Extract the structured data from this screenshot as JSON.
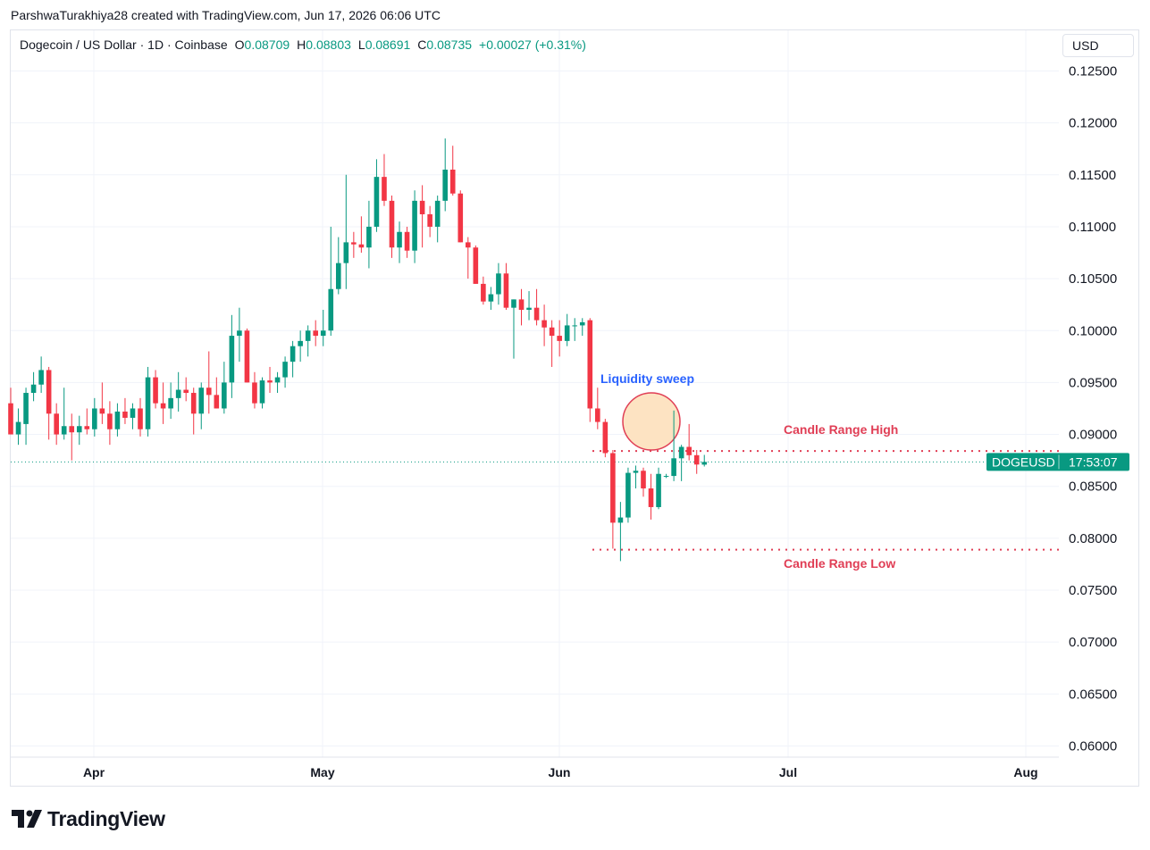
{
  "caption": "ParshwaTurakhiya28 created with TradingView.com, Jun 17, 2026 06:06 UTC",
  "legend": {
    "symbol": "Dogecoin / US Dollar · 1D · Coinbase",
    "open_label": "O",
    "open": "0.08709",
    "high_label": "H",
    "high": "0.08803",
    "low_label": "L",
    "low": "0.08691",
    "close_label": "C",
    "close": "0.08735",
    "change": "+0.00027 (+0.31%)"
  },
  "currency": "USD",
  "price_tag": {
    "ticker": "DOGEUSD",
    "countdown": "17:53:07",
    "price": 0.08735
  },
  "annotations": {
    "liquidity_sweep": "Liquidity sweep",
    "candle_range_high": "Candle Range High",
    "candle_range_low": "Candle Range Low"
  },
  "brand": "TradingView",
  "colors": {
    "up": "#089981",
    "down": "#f23645",
    "annotation_red": "#e03e55",
    "annotation_blue": "#2962ff",
    "circle_fill": "#fde3c2",
    "circle_stroke": "#e03e55",
    "grid": "#f0f3fa",
    "text": "#131722"
  },
  "chart_data": {
    "type": "candlestick",
    "interval": "1D",
    "y_ticks": [
      "0.12500",
      "0.12000",
      "0.11500",
      "0.11000",
      "0.10500",
      "0.10000",
      "0.09500",
      "0.09000",
      "0.08500",
      "0.08000",
      "0.07500",
      "0.07000",
      "0.06500",
      "0.06000"
    ],
    "ylim": [
      0.058,
      0.127
    ],
    "x_ticks": [
      "Apr",
      "May",
      "Jun",
      "Jul",
      "Aug"
    ],
    "candle_range_high": 0.0884,
    "candle_range_low": 0.0789,
    "candles": [
      {
        "o": 0.093,
        "h": 0.0945,
        "l": 0.0905,
        "c": 0.09
      },
      {
        "o": 0.09,
        "h": 0.0925,
        "l": 0.089,
        "c": 0.0912
      },
      {
        "o": 0.091,
        "h": 0.0945,
        "l": 0.089,
        "c": 0.094
      },
      {
        "o": 0.094,
        "h": 0.096,
        "l": 0.0932,
        "c": 0.0948
      },
      {
        "o": 0.0948,
        "h": 0.0975,
        "l": 0.094,
        "c": 0.0962
      },
      {
        "o": 0.0962,
        "h": 0.0965,
        "l": 0.0895,
        "c": 0.092
      },
      {
        "o": 0.092,
        "h": 0.093,
        "l": 0.089,
        "c": 0.09
      },
      {
        "o": 0.09,
        "h": 0.0945,
        "l": 0.0895,
        "c": 0.0908
      },
      {
        "o": 0.0908,
        "h": 0.092,
        "l": 0.0875,
        "c": 0.0902
      },
      {
        "o": 0.0902,
        "h": 0.0918,
        "l": 0.089,
        "c": 0.0908
      },
      {
        "o": 0.0908,
        "h": 0.0925,
        "l": 0.09,
        "c": 0.0905
      },
      {
        "o": 0.0905,
        "h": 0.0935,
        "l": 0.0898,
        "c": 0.0925
      },
      {
        "o": 0.0925,
        "h": 0.095,
        "l": 0.091,
        "c": 0.092
      },
      {
        "o": 0.092,
        "h": 0.0932,
        "l": 0.089,
        "c": 0.0905
      },
      {
        "o": 0.0905,
        "h": 0.093,
        "l": 0.0898,
        "c": 0.0922
      },
      {
        "o": 0.0922,
        "h": 0.0935,
        "l": 0.091,
        "c": 0.0916
      },
      {
        "o": 0.0916,
        "h": 0.093,
        "l": 0.0905,
        "c": 0.0925
      },
      {
        "o": 0.0925,
        "h": 0.0935,
        "l": 0.0898,
        "c": 0.0905
      },
      {
        "o": 0.0905,
        "h": 0.0965,
        "l": 0.0898,
        "c": 0.0955
      },
      {
        "o": 0.0955,
        "h": 0.0962,
        "l": 0.0925,
        "c": 0.093
      },
      {
        "o": 0.093,
        "h": 0.095,
        "l": 0.091,
        "c": 0.0925
      },
      {
        "o": 0.0925,
        "h": 0.095,
        "l": 0.0915,
        "c": 0.0935
      },
      {
        "o": 0.0935,
        "h": 0.096,
        "l": 0.0922,
        "c": 0.0943
      },
      {
        "o": 0.0943,
        "h": 0.0955,
        "l": 0.0932,
        "c": 0.094
      },
      {
        "o": 0.094,
        "h": 0.0945,
        "l": 0.09,
        "c": 0.092
      },
      {
        "o": 0.092,
        "h": 0.095,
        "l": 0.0905,
        "c": 0.0945
      },
      {
        "o": 0.0945,
        "h": 0.098,
        "l": 0.092,
        "c": 0.0938
      },
      {
        "o": 0.0938,
        "h": 0.0955,
        "l": 0.0925,
        "c": 0.0925
      },
      {
        "o": 0.0925,
        "h": 0.097,
        "l": 0.092,
        "c": 0.095
      },
      {
        "o": 0.095,
        "h": 0.1015,
        "l": 0.0935,
        "c": 0.0995
      },
      {
        "o": 0.0995,
        "h": 0.1022,
        "l": 0.097,
        "c": 0.1
      },
      {
        "o": 0.1,
        "h": 0.1002,
        "l": 0.095,
        "c": 0.095
      },
      {
        "o": 0.095,
        "h": 0.096,
        "l": 0.0925,
        "c": 0.093
      },
      {
        "o": 0.093,
        "h": 0.0955,
        "l": 0.0925,
        "c": 0.0952
      },
      {
        "o": 0.0952,
        "h": 0.0965,
        "l": 0.094,
        "c": 0.095
      },
      {
        "o": 0.095,
        "h": 0.096,
        "l": 0.094,
        "c": 0.0955
      },
      {
        "o": 0.0955,
        "h": 0.0975,
        "l": 0.0945,
        "c": 0.097
      },
      {
        "o": 0.097,
        "h": 0.099,
        "l": 0.0955,
        "c": 0.0985
      },
      {
        "o": 0.0985,
        "h": 0.1,
        "l": 0.097,
        "c": 0.099
      },
      {
        "o": 0.099,
        "h": 0.1005,
        "l": 0.0975,
        "c": 0.1
      },
      {
        "o": 0.1,
        "h": 0.101,
        "l": 0.0985,
        "c": 0.0995
      },
      {
        "o": 0.0995,
        "h": 0.102,
        "l": 0.0985,
        "c": 0.1
      },
      {
        "o": 0.1,
        "h": 0.11,
        "l": 0.0995,
        "c": 0.104
      },
      {
        "o": 0.104,
        "h": 0.109,
        "l": 0.1035,
        "c": 0.1065
      },
      {
        "o": 0.1065,
        "h": 0.115,
        "l": 0.104,
        "c": 0.1085
      },
      {
        "o": 0.1085,
        "h": 0.1095,
        "l": 0.107,
        "c": 0.1083
      },
      {
        "o": 0.1083,
        "h": 0.111,
        "l": 0.1075,
        "c": 0.108
      },
      {
        "o": 0.108,
        "h": 0.1125,
        "l": 0.106,
        "c": 0.11
      },
      {
        "o": 0.11,
        "h": 0.1165,
        "l": 0.1095,
        "c": 0.1148
      },
      {
        "o": 0.1148,
        "h": 0.117,
        "l": 0.112,
        "c": 0.1125
      },
      {
        "o": 0.1125,
        "h": 0.113,
        "l": 0.107,
        "c": 0.108
      },
      {
        "o": 0.108,
        "h": 0.1105,
        "l": 0.1065,
        "c": 0.1095
      },
      {
        "o": 0.1095,
        "h": 0.11,
        "l": 0.107,
        "c": 0.1077
      },
      {
        "o": 0.1077,
        "h": 0.1135,
        "l": 0.1065,
        "c": 0.1125
      },
      {
        "o": 0.1125,
        "h": 0.114,
        "l": 0.108,
        "c": 0.1112
      },
      {
        "o": 0.1112,
        "h": 0.112,
        "l": 0.109,
        "c": 0.11
      },
      {
        "o": 0.11,
        "h": 0.113,
        "l": 0.1085,
        "c": 0.1125
      },
      {
        "o": 0.1125,
        "h": 0.1185,
        "l": 0.1115,
        "c": 0.1155
      },
      {
        "o": 0.1155,
        "h": 0.1178,
        "l": 0.113,
        "c": 0.1132
      },
      {
        "o": 0.1132,
        "h": 0.1135,
        "l": 0.1085,
        "c": 0.1085
      },
      {
        "o": 0.1085,
        "h": 0.109,
        "l": 0.105,
        "c": 0.108
      },
      {
        "o": 0.108,
        "h": 0.1082,
        "l": 0.1045,
        "c": 0.1045
      },
      {
        "o": 0.1045,
        "h": 0.1052,
        "l": 0.1025,
        "c": 0.1028
      },
      {
        "o": 0.1028,
        "h": 0.1042,
        "l": 0.102,
        "c": 0.1035
      },
      {
        "o": 0.1035,
        "h": 0.1065,
        "l": 0.1025,
        "c": 0.1055
      },
      {
        "o": 0.1055,
        "h": 0.1065,
        "l": 0.102,
        "c": 0.1022
      },
      {
        "o": 0.1022,
        "h": 0.103,
        "l": 0.0973,
        "c": 0.103
      },
      {
        "o": 0.103,
        "h": 0.104,
        "l": 0.1005,
        "c": 0.102
      },
      {
        "o": 0.102,
        "h": 0.1038,
        "l": 0.101,
        "c": 0.1022
      },
      {
        "o": 0.1022,
        "h": 0.104,
        "l": 0.1005,
        "c": 0.101
      },
      {
        "o": 0.101,
        "h": 0.1025,
        "l": 0.0985,
        "c": 0.1003
      },
      {
        "o": 0.1003,
        "h": 0.101,
        "l": 0.0965,
        "c": 0.0995
      },
      {
        "o": 0.0995,
        "h": 0.101,
        "l": 0.0975,
        "c": 0.099
      },
      {
        "o": 0.099,
        "h": 0.1016,
        "l": 0.0985,
        "c": 0.1005
      },
      {
        "o": 0.1005,
        "h": 0.1012,
        "l": 0.099,
        "c": 0.1005
      },
      {
        "o": 0.1005,
        "h": 0.1012,
        "l": 0.0995,
        "c": 0.1008
      },
      {
        "o": 0.101,
        "h": 0.1012,
        "l": 0.0912,
        "c": 0.0925
      },
      {
        "o": 0.0925,
        "h": 0.0945,
        "l": 0.0905,
        "c": 0.0912
      },
      {
        "o": 0.0912,
        "h": 0.0915,
        "l": 0.0878,
        "c": 0.0882
      },
      {
        "o": 0.0882,
        "h": 0.0885,
        "l": 0.079,
        "c": 0.0815
      },
      {
        "o": 0.0815,
        "h": 0.0835,
        "l": 0.0778,
        "c": 0.082
      },
      {
        "o": 0.082,
        "h": 0.0868,
        "l": 0.0815,
        "c": 0.0863
      },
      {
        "o": 0.0863,
        "h": 0.087,
        "l": 0.0848,
        "c": 0.0865
      },
      {
        "o": 0.0865,
        "h": 0.0868,
        "l": 0.084,
        "c": 0.0848
      },
      {
        "o": 0.0848,
        "h": 0.0862,
        "l": 0.0818,
        "c": 0.083
      },
      {
        "o": 0.083,
        "h": 0.0868,
        "l": 0.0828,
        "c": 0.0862
      },
      {
        "o": 0.086,
        "h": 0.0862,
        "l": 0.0858,
        "c": 0.086
      },
      {
        "o": 0.086,
        "h": 0.0923,
        "l": 0.0855,
        "c": 0.0877
      },
      {
        "o": 0.0877,
        "h": 0.089,
        "l": 0.0855,
        "c": 0.0888
      },
      {
        "o": 0.0888,
        "h": 0.091,
        "l": 0.0875,
        "c": 0.088
      },
      {
        "o": 0.088,
        "h": 0.0885,
        "l": 0.0862,
        "c": 0.0871
      },
      {
        "o": 0.08709,
        "h": 0.08803,
        "l": 0.08691,
        "c": 0.08735
      }
    ]
  }
}
